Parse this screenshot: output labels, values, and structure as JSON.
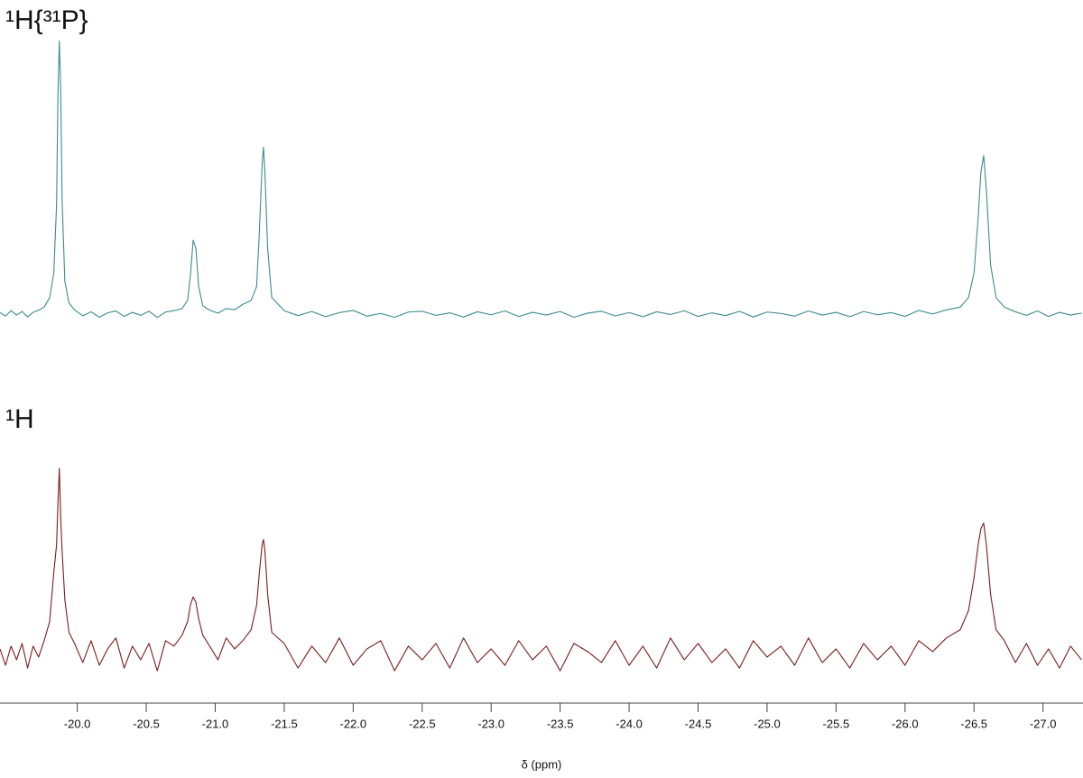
{
  "chart_data": [
    {
      "type": "line",
      "title": "¹H{³¹P}",
      "x": [
        -19.44,
        -19.48,
        -19.52,
        -19.56,
        -19.6,
        -19.64,
        -19.68,
        -19.72,
        -19.76,
        -19.8,
        -19.83,
        -19.85,
        -19.86,
        -19.87,
        -19.88,
        -19.89,
        -19.91,
        -19.94,
        -19.98,
        -20.04,
        -20.1,
        -20.16,
        -20.22,
        -20.28,
        -20.34,
        -20.4,
        -20.46,
        -20.52,
        -20.58,
        -20.64,
        -20.7,
        -20.76,
        -20.8,
        -20.82,
        -20.84,
        -20.86,
        -20.88,
        -20.91,
        -20.96,
        -21.02,
        -21.08,
        -21.14,
        -21.2,
        -21.26,
        -21.3,
        -21.32,
        -21.34,
        -21.35,
        -21.36,
        -21.38,
        -21.41,
        -21.5,
        -21.6,
        -21.7,
        -21.8,
        -21.9,
        -22.0,
        -22.1,
        -22.2,
        -22.3,
        -22.4,
        -22.5,
        -22.6,
        -22.7,
        -22.8,
        -22.9,
        -23.0,
        -23.1,
        -23.2,
        -23.3,
        -23.4,
        -23.5,
        -23.6,
        -23.7,
        -23.8,
        -23.9,
        -24.0,
        -24.1,
        -24.2,
        -24.3,
        -24.4,
        -24.5,
        -24.6,
        -24.7,
        -24.8,
        -24.9,
        -25.0,
        -25.1,
        -25.2,
        -25.3,
        -25.4,
        -25.5,
        -25.6,
        -25.7,
        -25.8,
        -25.9,
        -26.0,
        -26.1,
        -26.2,
        -26.3,
        -26.4,
        -26.46,
        -26.5,
        -26.53,
        -26.55,
        -26.57,
        -26.59,
        -26.62,
        -26.66,
        -26.72,
        -26.8,
        -26.88,
        -26.96,
        -27.04,
        -27.12,
        -27.2,
        -27.28
      ],
      "series": [
        {
          "color": "#3d8b8e",
          "values": [
            0.5,
            -0.8,
            1.2,
            -0.4,
            0.9,
            -1.1,
            0.6,
            1.4,
            2.5,
            6,
            15,
            40,
            80,
            100,
            82,
            42,
            12,
            4,
            1.5,
            -0.7,
            0.8,
            -1.2,
            0.4,
            1.1,
            -0.9,
            0.6,
            -0.5,
            1.0,
            -1.3,
            0.7,
            1.2,
            2.0,
            5,
            14,
            27,
            24,
            10,
            3,
            1.4,
            0.3,
            2.0,
            1.5,
            3.5,
            5.0,
            10,
            30,
            55,
            61,
            52,
            24,
            6,
            1.2,
            -0.6,
            0.9,
            -1.0,
            0.5,
            1.3,
            -0.8,
            0.2,
            -1.2,
            0.7,
            1.0,
            -0.5,
            0.4,
            -1.1,
            0.8,
            -0.3,
            1.1,
            -0.9,
            0.6,
            -0.4,
            0.9,
            -1.2,
            0.3,
            1.0,
            -0.7,
            0.5,
            -1.0,
            0.8,
            -0.2,
            1.2,
            -0.9,
            0.4,
            -0.6,
            1.0,
            -1.1,
            0.7,
            0.2,
            -0.8,
            1.1,
            -0.4,
            0.6,
            -1.0,
            0.9,
            -0.3,
            0.5,
            -0.9,
            1.3,
            0.0,
            1.5,
            2.5,
            6,
            15,
            35,
            52,
            58,
            45,
            18,
            6,
            2.5,
            0.8,
            -0.5,
            1.1,
            -0.9,
            0.6,
            -0.4,
            0.3
          ]
        }
      ],
      "xlim": [
        -19.44,
        -27.29
      ],
      "ylim": [
        -5,
        105
      ]
    },
    {
      "type": "line",
      "title": "¹H",
      "xlabel": "δ (ppm)",
      "x": [
        -19.44,
        -19.48,
        -19.52,
        -19.56,
        -19.6,
        -19.64,
        -19.68,
        -19.72,
        -19.76,
        -19.8,
        -19.83,
        -19.85,
        -19.86,
        -19.87,
        -19.88,
        -19.89,
        -19.91,
        -19.94,
        -19.98,
        -20.04,
        -20.1,
        -20.16,
        -20.22,
        -20.28,
        -20.34,
        -20.4,
        -20.46,
        -20.52,
        -20.58,
        -20.64,
        -20.7,
        -20.76,
        -20.8,
        -20.82,
        -20.84,
        -20.86,
        -20.88,
        -20.91,
        -20.96,
        -21.02,
        -21.08,
        -21.14,
        -21.2,
        -21.26,
        -21.3,
        -21.32,
        -21.34,
        -21.35,
        -21.36,
        -21.38,
        -21.41,
        -21.5,
        -21.6,
        -21.7,
        -21.8,
        -21.9,
        -22.0,
        -22.1,
        -22.2,
        -22.3,
        -22.4,
        -22.5,
        -22.6,
        -22.7,
        -22.8,
        -22.9,
        -23.0,
        -23.1,
        -23.2,
        -23.3,
        -23.4,
        -23.5,
        -23.6,
        -23.7,
        -23.8,
        -23.9,
        -24.0,
        -24.1,
        -24.2,
        -24.3,
        -24.4,
        -24.5,
        -24.6,
        -24.7,
        -24.8,
        -24.9,
        -25.0,
        -25.1,
        -25.2,
        -25.3,
        -25.4,
        -25.5,
        -25.6,
        -25.7,
        -25.8,
        -25.9,
        -26.0,
        -26.1,
        -26.2,
        -26.3,
        -26.4,
        -26.46,
        -26.5,
        -26.53,
        -26.55,
        -26.57,
        -26.59,
        -26.62,
        -26.66,
        -26.72,
        -26.8,
        -26.88,
        -26.96,
        -27.04,
        -27.12,
        -27.2,
        -27.28
      ],
      "series": [
        {
          "color": "#7b1c1c",
          "values": [
            2,
            -4,
            3,
            -2,
            4,
            -5,
            3,
            -1,
            5,
            12,
            30,
            40,
            55,
            68,
            50,
            38,
            20,
            8,
            4,
            -3,
            5,
            -4,
            2,
            6,
            -5,
            3,
            -2,
            4,
            -6,
            5,
            3,
            7,
            12,
            18,
            21,
            19,
            13,
            7,
            3,
            -2,
            6,
            2,
            5,
            9,
            18,
            30,
            40,
            42,
            38,
            22,
            8,
            4,
            -5,
            3,
            -3,
            6,
            -4,
            2,
            5,
            -6,
            3,
            -2,
            4,
            -5,
            6,
            -3,
            2,
            -4,
            5,
            -2,
            3,
            -6,
            4,
            1,
            -3,
            5,
            -4,
            3,
            -5,
            6,
            -2,
            4,
            -3,
            2,
            -5,
            5,
            -1,
            3,
            -4,
            6,
            -3,
            2,
            -5,
            4,
            -2,
            3,
            -4,
            5,
            1,
            6,
            9,
            16,
            28,
            40,
            46,
            48,
            40,
            22,
            9,
            5,
            -3,
            4,
            -4,
            2,
            -5,
            3,
            -2
          ]
        }
      ],
      "xlim": [
        -19.44,
        -27.29
      ],
      "ylim": [
        -10,
        80
      ],
      "xticks": [
        {
          "value": -20,
          "label": "-20.0"
        },
        -20.5,
        {
          "value": -21,
          "label": "-21.0"
        },
        -21.5,
        {
          "value": -22,
          "label": "-22.0"
        },
        -22.5,
        {
          "value": -23,
          "label": "-23.0"
        },
        -23.5,
        {
          "value": -24,
          "label": "-24.0"
        },
        -24.5,
        {
          "value": -25,
          "label": "-25.0"
        },
        -25.5,
        {
          "value": -26,
          "label": "-26.0"
        },
        -26.5,
        {
          "value": -27,
          "label": "-27.0"
        }
      ]
    }
  ]
}
